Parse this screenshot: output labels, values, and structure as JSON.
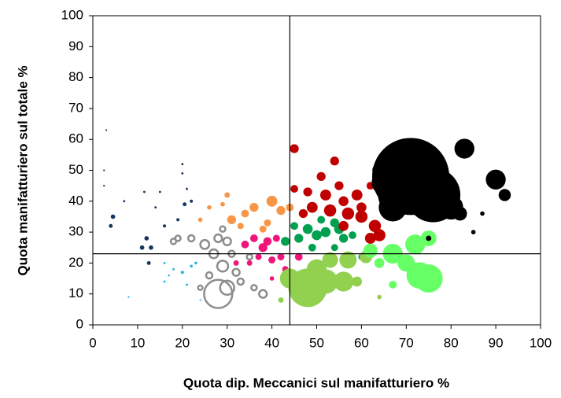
{
  "chart_data": {
    "type": "bubble",
    "x_label": "Quota dip. Meccanici sul manifatturiero %",
    "y_label": "Quota manifatturiero sul totale %",
    "xlim": [
      0,
      100
    ],
    "ylim": [
      0,
      100
    ],
    "xticks": [
      0,
      10,
      20,
      30,
      40,
      50,
      60,
      70,
      80,
      90,
      100
    ],
    "yticks": [
      0,
      10,
      20,
      30,
      40,
      50,
      60,
      70,
      80,
      90,
      100
    ],
    "grid": false,
    "vline": 44,
    "hline": 23,
    "series": [
      {
        "color": "#17375e",
        "filled": true,
        "x": [
          3,
          2.5,
          2.5,
          4.5,
          4,
          7,
          11.5,
          12,
          11,
          13,
          12.5,
          15,
          20,
          20,
          21,
          22,
          20.5,
          19,
          16,
          14
        ],
        "values": [
          63,
          50,
          45,
          35,
          32,
          40,
          43,
          28,
          25,
          25,
          20,
          43,
          52,
          49,
          44,
          40,
          39,
          34,
          32,
          38
        ],
        "sizes": [
          0.3,
          0.3,
          0.3,
          2,
          1.5,
          0.5,
          0.5,
          2,
          2,
          2,
          1.5,
          0.5,
          0.5,
          0.5,
          0.5,
          1,
          1.5,
          1,
          1,
          0.5
        ]
      },
      {
        "color": "#1eb4e6",
        "filled": true,
        "x": [
          8,
          16,
          18,
          20,
          22,
          23,
          16,
          21,
          24,
          26,
          17
        ],
        "values": [
          9,
          20,
          18,
          17,
          19,
          20,
          14,
          13,
          8,
          15,
          16
        ],
        "sizes": [
          0.3,
          0.5,
          0.5,
          1,
          0.8,
          0.8,
          0.5,
          0.5,
          0.3,
          0.5,
          0.4
        ]
      },
      {
        "color": "#8c8c8c",
        "filled": false,
        "x": [
          28,
          30,
          29,
          27,
          25,
          28,
          30,
          22,
          19,
          18,
          32,
          33,
          31,
          29,
          38,
          35,
          26,
          24,
          36
        ],
        "values": [
          10,
          12,
          19,
          23,
          26,
          28,
          27,
          28,
          28,
          27,
          17,
          14,
          23,
          31,
          10,
          22,
          16,
          12,
          12
        ],
        "sizes": [
          80,
          20,
          12,
          8,
          8,
          6,
          6,
          4,
          3,
          3,
          5,
          4,
          4,
          3,
          6,
          3,
          4,
          2,
          3
        ]
      },
      {
        "color": "#f79646",
        "filled": true,
        "x": [
          26,
          24,
          31,
          34,
          36,
          40,
          42,
          38,
          33,
          44,
          30,
          29,
          39
        ],
        "values": [
          38,
          34,
          34,
          36,
          38,
          40,
          37,
          31,
          32,
          38,
          42,
          39,
          33
        ],
        "sizes": [
          2,
          2,
          8,
          6,
          8,
          12,
          8,
          5,
          4,
          6,
          3,
          2,
          5
        ]
      },
      {
        "color": "#f0147a",
        "filled": true,
        "x": [
          34,
          36,
          38,
          40,
          42,
          43,
          39,
          37,
          35,
          41,
          46,
          32,
          40
        ],
        "values": [
          26,
          28,
          25,
          21,
          22,
          18,
          27,
          22,
          20,
          28,
          22,
          20,
          15
        ],
        "sizes": [
          6,
          6,
          8,
          5,
          5,
          4,
          7,
          4,
          3,
          5,
          6,
          3,
          2
        ]
      },
      {
        "color": "#00a050",
        "filled": true,
        "x": [
          43,
          46,
          48,
          50,
          52,
          54,
          56,
          58,
          55,
          45,
          49,
          51,
          60,
          54
        ],
        "values": [
          27,
          28,
          31,
          29,
          30,
          33,
          28,
          29,
          31,
          32,
          25,
          34,
          22,
          25
        ],
        "sizes": [
          8,
          8,
          10,
          10,
          10,
          8,
          8,
          6,
          10,
          6,
          6,
          6,
          4,
          5
        ]
      },
      {
        "color": "#92d050",
        "filled": true,
        "x": [
          48,
          44,
          52,
          56,
          53,
          50,
          57,
          61,
          59,
          64,
          42
        ],
        "values": [
          12,
          15,
          14,
          14,
          21,
          18,
          21,
          22,
          14,
          9,
          8
        ],
        "sizes": [
          150,
          40,
          60,
          40,
          25,
          40,
          30,
          16,
          10,
          2,
          3
        ]
      },
      {
        "color": "#66ff66",
        "filled": true,
        "x": [
          73,
          75,
          70,
          67,
          72,
          75,
          64,
          67,
          62
        ],
        "values": [
          16,
          15,
          20,
          23,
          26,
          28,
          20,
          13,
          24
        ],
        "sizes": [
          70,
          80,
          30,
          40,
          40,
          25,
          10,
          6,
          20
        ]
      },
      {
        "color": "#c00000",
        "filled": true,
        "x": [
          45,
          45,
          54,
          51,
          52,
          49,
          53,
          57,
          60,
          63,
          64,
          62,
          56,
          48,
          60,
          59,
          66,
          62,
          56,
          55,
          47
        ],
        "values": [
          57,
          44,
          53,
          48,
          42,
          38,
          37,
          36,
          35,
          32,
          29,
          28,
          32,
          43,
          38,
          42,
          38,
          45,
          40,
          45,
          36
        ],
        "sizes": [
          8,
          6,
          8,
          8,
          12,
          12,
          15,
          15,
          15,
          15,
          15,
          12,
          10,
          8,
          10,
          12,
          8,
          6,
          10,
          8,
          8
        ]
      },
      {
        "color": "#000000",
        "filled": true,
        "x": [
          71,
          76,
          68,
          65,
          67,
          80,
          82,
          83,
          90,
          92,
          87,
          85,
          75,
          64
        ],
        "values": [
          48,
          42,
          42,
          46,
          38,
          38,
          36,
          57,
          47,
          42,
          36,
          30,
          28,
          50
        ],
        "sizes": [
          600,
          300,
          150,
          60,
          80,
          60,
          20,
          40,
          40,
          15,
          2,
          2,
          3,
          20
        ]
      }
    ]
  }
}
